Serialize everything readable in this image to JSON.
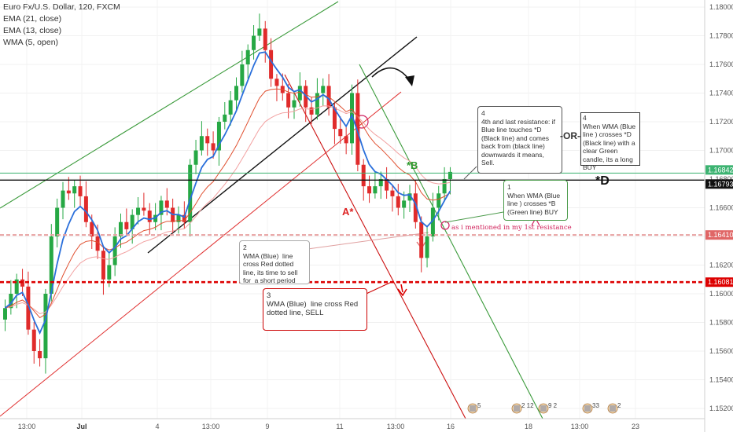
{
  "legend": {
    "title": "Euro Fx/U.S. Dollar, 120, FXCM",
    "lines": [
      "EMA (21, close)",
      "EMA (13, close)",
      "WMA (5, open)"
    ]
  },
  "chart_data": {
    "type": "candlestick",
    "ylim": [
      1.1515,
      1.181
    ],
    "yticks": [
      "1.18000",
      "1.17800",
      "1.17600",
      "1.17400",
      "1.17200",
      "1.17000",
      "1.16800",
      "1.16600",
      "1.16400",
      "1.16200",
      "1.16000",
      "1.15800",
      "1.15600",
      "1.15400",
      "1.15200"
    ],
    "xticks": [
      {
        "label": "13:00",
        "bold": false
      },
      {
        "label": "Jul",
        "bold": true
      },
      {
        "label": "4",
        "bold": false
      },
      {
        "label": "13:00",
        "bold": false
      },
      {
        "label": "9",
        "bold": false
      },
      {
        "label": "11",
        "bold": false
      },
      {
        "label": "13:00",
        "bold": false
      },
      {
        "label": "16",
        "bold": false
      },
      {
        "label": "18",
        "bold": false
      },
      {
        "label": "13:00",
        "bold": false
      },
      {
        "label": "23",
        "bold": false
      }
    ],
    "price_labels": [
      {
        "value": "1.16842",
        "color": "#3cb371"
      },
      {
        "value": "1.16793",
        "color": "#111111"
      },
      {
        "value": "1.16410",
        "color": "#e06666"
      },
      {
        "value": "1.16081",
        "color": "#dd0000"
      }
    ],
    "levels": {
      "green_line": 1.16842,
      "black_line": 1.16793,
      "pink_dotted": 1.1641,
      "red_dotted": 1.16081
    },
    "closes": [
      1.159,
      1.16,
      1.161,
      1.1605,
      1.1575,
      1.156,
      1.1555,
      1.16,
      1.164,
      1.166,
      1.1672,
      1.167,
      1.1675,
      1.1668,
      1.165,
      1.164,
      1.163,
      1.161,
      1.162,
      1.164,
      1.165,
      1.1645,
      1.1655,
      1.166,
      1.1658,
      1.165,
      1.1655,
      1.1665,
      1.166,
      1.165,
      1.1655,
      1.165,
      1.169,
      1.17,
      1.171,
      1.1705,
      1.17,
      1.172,
      1.1725,
      1.1735,
      1.1745,
      1.176,
      1.177,
      1.178,
      1.1785,
      1.177,
      1.175,
      1.1745,
      1.174,
      1.173,
      1.1735,
      1.1745,
      1.173,
      1.1725,
      1.174,
      1.1745,
      1.173,
      1.1715,
      1.171,
      1.1705,
      1.174,
      1.169,
      1.1675,
      1.167,
      1.1675,
      1.168,
      1.1672,
      1.1668,
      1.166,
      1.1665,
      1.167,
      1.165,
      1.1625,
      1.164,
      1.166,
      1.167,
      1.168,
      1.1685
    ]
  },
  "annotations": {
    "note1": "1\nWhen WMA (Blue line ) crosses *B (Green line) BUY",
    "note2": "2\nWMA (Blue)  line cross Red dotted line, its time to sell for  a short period",
    "note3": "3\nWMA (Blue)  line cross Red dotted line, SELL",
    "note4a": "4\n4th and last resistance: if Blue line touches *D (Black line) and comes back from (black line) downwards it means, Sell.",
    "note4b": "4\nWhen WMA (Blue line ) crosses *D (Black line) with a clear Green candle, its a long BUY",
    "or_label": "-OR-",
    "label_b": "*B",
    "label_d": "*D",
    "label_a": "A*",
    "resistance_note": "as i mentioned in my 1st resistance"
  },
  "events": [
    "5",
    "2",
    "12",
    "9",
    "2",
    "33",
    "2"
  ]
}
